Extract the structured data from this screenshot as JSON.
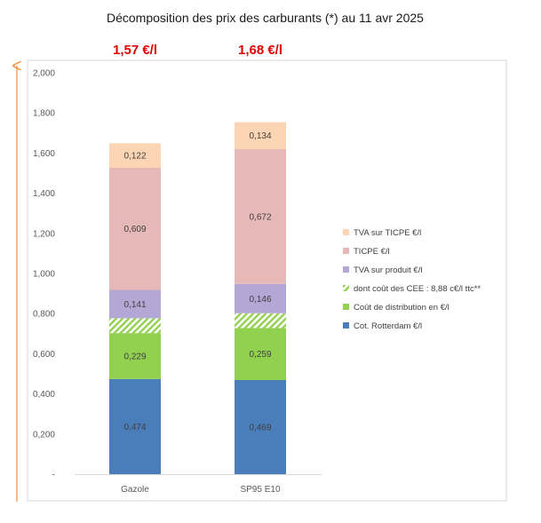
{
  "chart_data": {
    "type": "bar",
    "stacked": true,
    "title": "Décomposition des prix des carburants (*) au 11 avr 2025",
    "categories": [
      "Gazole",
      "SP95 E10"
    ],
    "totals": [
      "1,57 €/l",
      "1,68 €/l"
    ],
    "ylim": [
      0,
      2.0
    ],
    "yticks": [
      "-",
      "0,200",
      "0,400",
      "0,600",
      "0,800",
      "1,000",
      "1,200",
      "1,400",
      "1,600",
      "1,800",
      "2,000"
    ],
    "series": [
      {
        "name": "Cot. Rotterdam €/l",
        "values": [
          0.474,
          0.469
        ],
        "labels": [
          "0,474",
          "0,469"
        ],
        "color": "#4a7ebb",
        "pattern": false
      },
      {
        "name": "Coût de distribution en €/l",
        "values": [
          0.229,
          0.259
        ],
        "labels": [
          "0,229",
          "0,259"
        ],
        "color": "#92d050",
        "pattern": false
      },
      {
        "name": "dont coût des CEE : 8,88 c€/l ttc**",
        "values": [
          0.074,
          0.074
        ],
        "labels": [
          "",
          ""
        ],
        "color": "#92d050",
        "pattern": true
      },
      {
        "name": "TVA sur produit €/l",
        "values": [
          0.141,
          0.146
        ],
        "labels": [
          "0,141",
          "0,146"
        ],
        "color": "#b4a7d6",
        "pattern": false
      },
      {
        "name": "TICPE €/l",
        "values": [
          0.609,
          0.672
        ],
        "labels": [
          "0,609",
          "0,672"
        ],
        "color": "#e6b8b7",
        "pattern": false
      },
      {
        "name": "TVA sur TICPE €/l",
        "values": [
          0.122,
          0.134
        ],
        "labels": [
          "0,122",
          "0,134"
        ],
        "color": "#fcd5b4",
        "pattern": false
      }
    ],
    "legend_order": [
      5,
      4,
      3,
      2,
      1,
      0
    ],
    "legend": "right",
    "grid": false,
    "arrow_color": "#f79646",
    "frame_color": "#d9d9d9"
  }
}
